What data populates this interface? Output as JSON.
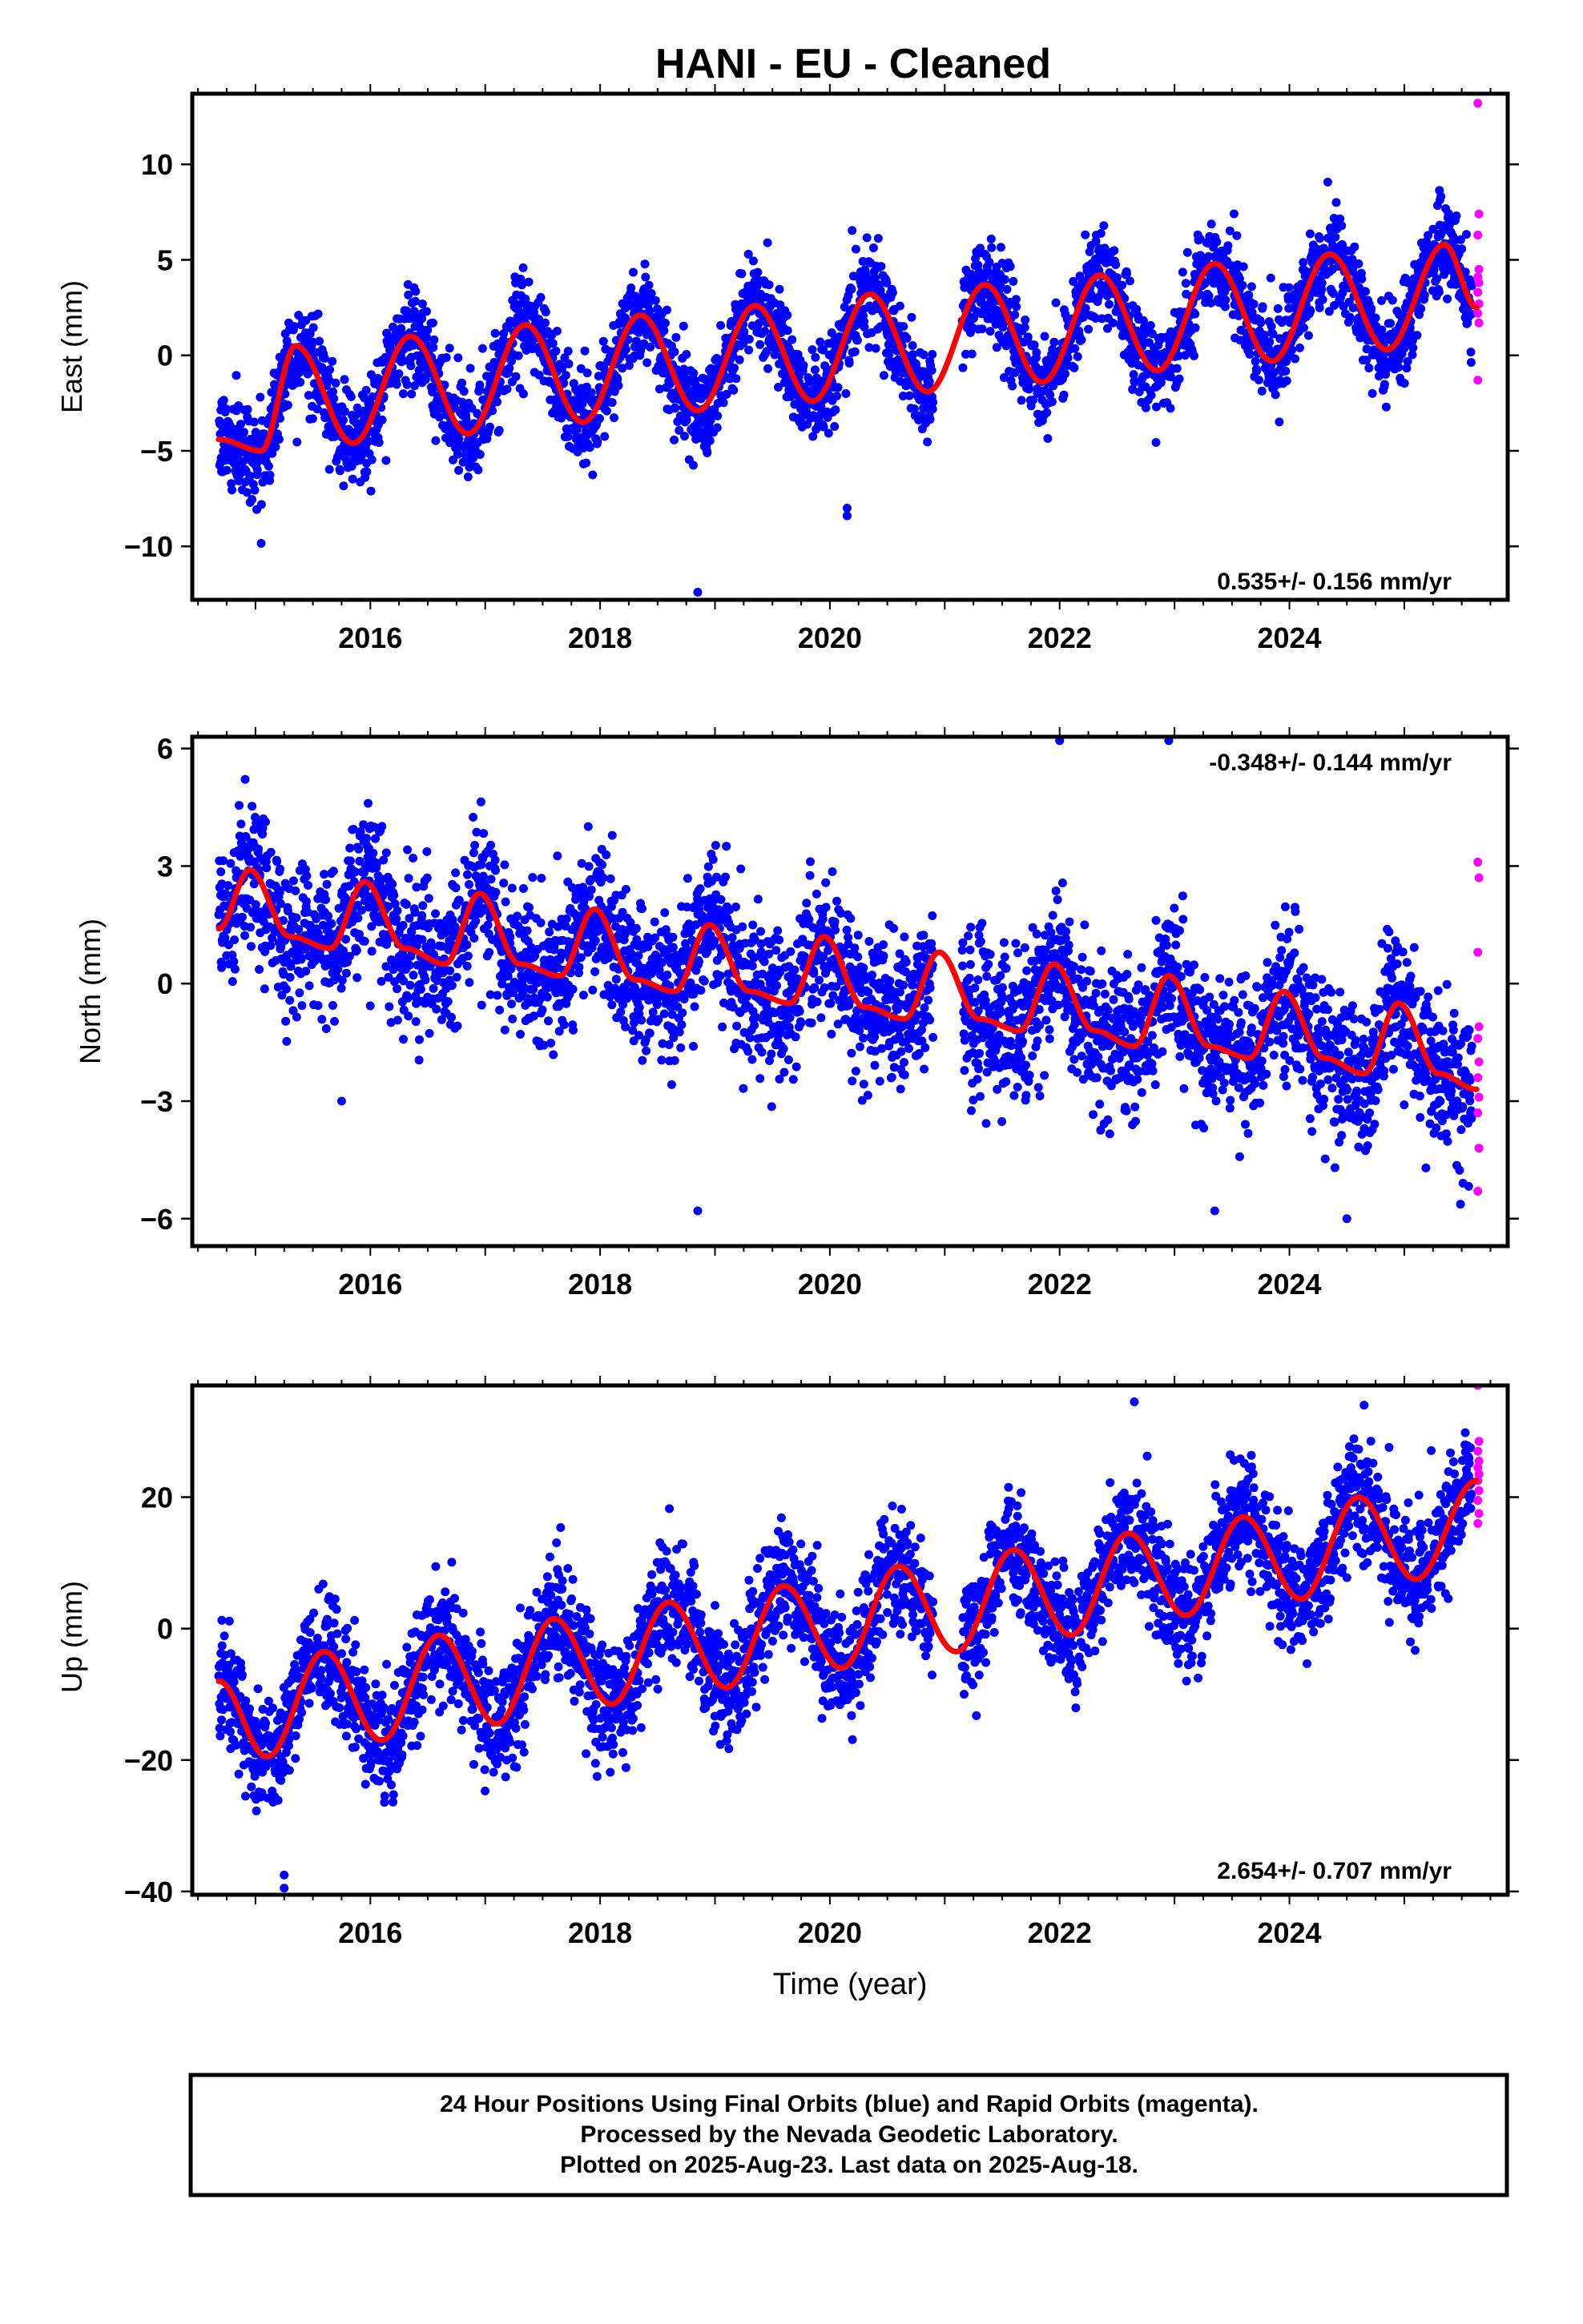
{
  "title": "HANI  - EU - Cleaned",
  "xlabel": "Time (year)",
  "footer": [
    "24 Hour Positions Using Final Orbits (blue) and Rapid Orbits (magenta).",
    "Processed by the Nevada Geodetic Laboratory.",
    "Plotted on 2025-Aug-23. Last data on 2025-Aug-18."
  ],
  "colors": {
    "final": "#0000ff",
    "rapid": "#ff00ff",
    "model": "#ff0000"
  },
  "chart_data": [
    {
      "type": "scatter",
      "component": "East",
      "ylabel": "East (mm)",
      "rate_label": "0.535+/- 0.156 mm/yr",
      "xlim": [
        2014.45,
        2025.9
      ],
      "ylim": [
        -12.8,
        13.7
      ],
      "yticks": [
        10,
        5,
        0,
        -5,
        -10
      ],
      "ytick_labels": [
        "10",
        "5",
        "0",
        "−5",
        "−10"
      ],
      "xticks": [
        2016,
        2018,
        2020,
        2022,
        2024
      ],
      "xtick_labels": [
        "2016",
        "2018",
        "2020",
        "2022",
        "2024"
      ],
      "data_start": 2014.68,
      "data_end": 2025.63,
      "model": {
        "offset": -2.4,
        "rate": 0.535,
        "annual_amp": 2.6,
        "annual_peak": 2014.35,
        "semiannual_amp": 0.3,
        "scatter_sd": 1.2
      },
      "model_knots": [
        {
          "x": 2014.68,
          "y": -4.4
        },
        {
          "x": 2015.05,
          "y": -5.0
        },
        {
          "x": 2015.35,
          "y": 0.5
        },
        {
          "x": 2015.85,
          "y": -4.6
        },
        {
          "x": 2016.35,
          "y": 1.0
        },
        {
          "x": 2016.85,
          "y": -4.1
        },
        {
          "x": 2017.35,
          "y": 1.6
        },
        {
          "x": 2017.85,
          "y": -3.5
        },
        {
          "x": 2018.35,
          "y": 2.1
        },
        {
          "x": 2018.85,
          "y": -2.9
        },
        {
          "x": 2019.35,
          "y": 2.6
        },
        {
          "x": 2019.85,
          "y": -2.4
        },
        {
          "x": 2020.35,
          "y": 3.2
        },
        {
          "x": 2020.85,
          "y": -1.9
        },
        {
          "x": 2021.35,
          "y": 3.7
        },
        {
          "x": 2021.85,
          "y": -1.4
        },
        {
          "x": 2022.35,
          "y": 4.2
        },
        {
          "x": 2022.85,
          "y": -0.8
        },
        {
          "x": 2023.35,
          "y": 4.8
        },
        {
          "x": 2023.85,
          "y": -0.3
        },
        {
          "x": 2024.35,
          "y": 5.3
        },
        {
          "x": 2024.85,
          "y": 0.3
        },
        {
          "x": 2025.35,
          "y": 5.8
        },
        {
          "x": 2025.63,
          "y": 2.5
        }
      ],
      "gaps": [
        [
          2020.9,
          2021.15
        ]
      ],
      "outliers": [
        {
          "x": 2020.15,
          "y": -8.0
        },
        {
          "x": 2020.15,
          "y": -8.4
        },
        {
          "x": 2018.85,
          "y": -12.4
        }
      ],
      "rapid_points": [
        13.2,
        7.4,
        6.3,
        4.5,
        4.1,
        3.8,
        3.3,
        2.7,
        2.2,
        1.7,
        -1.3
      ]
    },
    {
      "type": "scatter",
      "component": "North",
      "ylabel": "North (mm)",
      "rate_label": "-0.348+/- 0.144 mm/yr",
      "xlim": [
        2014.45,
        2025.9
      ],
      "ylim": [
        -6.7,
        6.3
      ],
      "yticks": [
        6,
        3,
        0,
        -3,
        -6
      ],
      "ytick_labels": [
        "6",
        "3",
        "0",
        "−3",
        "−6"
      ],
      "xticks": [
        2016,
        2018,
        2020,
        2022,
        2024
      ],
      "xtick_labels": [
        "2016",
        "2018",
        "2020",
        "2022",
        "2024"
      ],
      "data_start": 2014.68,
      "data_end": 2025.63,
      "model": {
        "offset": 1.4,
        "rate": -0.348,
        "annual_amp": 0.9,
        "annual_peak": 2014.95,
        "semiannual_amp": 0.3,
        "scatter_sd": 0.9
      },
      "model_knots": [
        {
          "x": 2014.68,
          "y": 1.4
        },
        {
          "x": 2014.95,
          "y": 2.9
        },
        {
          "x": 2015.3,
          "y": 1.2
        },
        {
          "x": 2015.65,
          "y": 0.9
        },
        {
          "x": 2015.95,
          "y": 2.6
        },
        {
          "x": 2016.3,
          "y": 0.9
        },
        {
          "x": 2016.65,
          "y": 0.5
        },
        {
          "x": 2016.95,
          "y": 2.3
        },
        {
          "x": 2017.3,
          "y": 0.5
        },
        {
          "x": 2017.65,
          "y": 0.2
        },
        {
          "x": 2017.95,
          "y": 1.9
        },
        {
          "x": 2018.3,
          "y": 0.1
        },
        {
          "x": 2018.65,
          "y": -0.2
        },
        {
          "x": 2018.95,
          "y": 1.5
        },
        {
          "x": 2019.3,
          "y": -0.2
        },
        {
          "x": 2019.65,
          "y": -0.5
        },
        {
          "x": 2019.95,
          "y": 1.2
        },
        {
          "x": 2020.3,
          "y": -0.6
        },
        {
          "x": 2020.65,
          "y": -0.9
        },
        {
          "x": 2020.95,
          "y": 0.8
        },
        {
          "x": 2021.3,
          "y": -0.9
        },
        {
          "x": 2021.65,
          "y": -1.2
        },
        {
          "x": 2021.95,
          "y": 0.5
        },
        {
          "x": 2022.3,
          "y": -1.2
        },
        {
          "x": 2022.65,
          "y": -1.6
        },
        {
          "x": 2022.95,
          "y": 0.2
        },
        {
          "x": 2023.3,
          "y": -1.6
        },
        {
          "x": 2023.65,
          "y": -1.9
        },
        {
          "x": 2023.95,
          "y": -0.2
        },
        {
          "x": 2024.3,
          "y": -1.9
        },
        {
          "x": 2024.65,
          "y": -2.3
        },
        {
          "x": 2024.95,
          "y": -0.5
        },
        {
          "x": 2025.3,
          "y": -2.3
        },
        {
          "x": 2025.63,
          "y": -2.7
        }
      ],
      "gaps": [
        [
          2020.9,
          2021.15
        ]
      ],
      "outliers": [
        {
          "x": 2022.0,
          "y": 6.2
        },
        {
          "x": 2022.95,
          "y": 6.2
        },
        {
          "x": 2018.85,
          "y": -5.8
        },
        {
          "x": 2023.35,
          "y": -5.8
        },
        {
          "x": 2024.5,
          "y": -6.0
        },
        {
          "x": 2015.75,
          "y": -3.0
        }
      ],
      "rapid_points": [
        3.1,
        2.7,
        0.8,
        -1.1,
        -1.4,
        -2.0,
        -2.4,
        -2.9,
        -3.3,
        -4.2,
        -5.3
      ]
    },
    {
      "type": "scatter",
      "component": "Up",
      "ylabel": "Up (mm)",
      "rate_label": "2.654+/- 0.707 mm/yr",
      "xlim": [
        2014.45,
        2025.9
      ],
      "ylim": [
        -40.5,
        37
      ],
      "yticks": [
        20,
        0,
        -20,
        -40
      ],
      "ytick_labels": [
        "20",
        "0",
        "−20",
        "−40"
      ],
      "xticks": [
        2016,
        2018,
        2020,
        2022,
        2024
      ],
      "xtick_labels": [
        "2016",
        "2018",
        "2020",
        "2022",
        "2024"
      ],
      "data_start": 2014.68,
      "data_end": 2025.63,
      "model": {
        "offset": -12,
        "rate": 2.654,
        "annual_amp": 8.5,
        "annual_peak": 2014.62,
        "semiannual_amp": 1.0,
        "scatter_sd": 4.5
      },
      "model_knots": [
        {
          "x": 2014.68,
          "y": -8.0
        },
        {
          "x": 2015.1,
          "y": -19.5
        },
        {
          "x": 2015.6,
          "y": -3.5
        },
        {
          "x": 2016.1,
          "y": -17.0
        },
        {
          "x": 2016.6,
          "y": -1.0
        },
        {
          "x": 2017.1,
          "y": -14.5
        },
        {
          "x": 2017.6,
          "y": 1.5
        },
        {
          "x": 2018.1,
          "y": -11.5
        },
        {
          "x": 2018.6,
          "y": 4.0
        },
        {
          "x": 2019.1,
          "y": -9.0
        },
        {
          "x": 2019.6,
          "y": 6.5
        },
        {
          "x": 2020.1,
          "y": -6.0
        },
        {
          "x": 2020.6,
          "y": 9.5
        },
        {
          "x": 2021.1,
          "y": -3.5
        },
        {
          "x": 2021.6,
          "y": 12.0
        },
        {
          "x": 2022.1,
          "y": -1.0
        },
        {
          "x": 2022.6,
          "y": 14.5
        },
        {
          "x": 2023.1,
          "y": 2.0
        },
        {
          "x": 2023.6,
          "y": 17.0
        },
        {
          "x": 2024.1,
          "y": 4.5
        },
        {
          "x": 2024.6,
          "y": 20.0
        },
        {
          "x": 2025.1,
          "y": 7.5
        },
        {
          "x": 2025.63,
          "y": 22.5
        }
      ],
      "gaps": [
        [
          2020.9,
          2021.15
        ]
      ],
      "outliers": [
        {
          "x": 2015.25,
          "y": -37.5
        },
        {
          "x": 2015.25,
          "y": -39.5
        },
        {
          "x": 2022.65,
          "y": 34.5
        },
        {
          "x": 2024.65,
          "y": 34.0
        }
      ],
      "rapid_points": [
        37.0,
        28.5,
        27.0,
        25.5,
        24.5,
        23.5,
        22.5,
        21.0,
        19.5,
        17.5,
        16.0
      ]
    }
  ]
}
